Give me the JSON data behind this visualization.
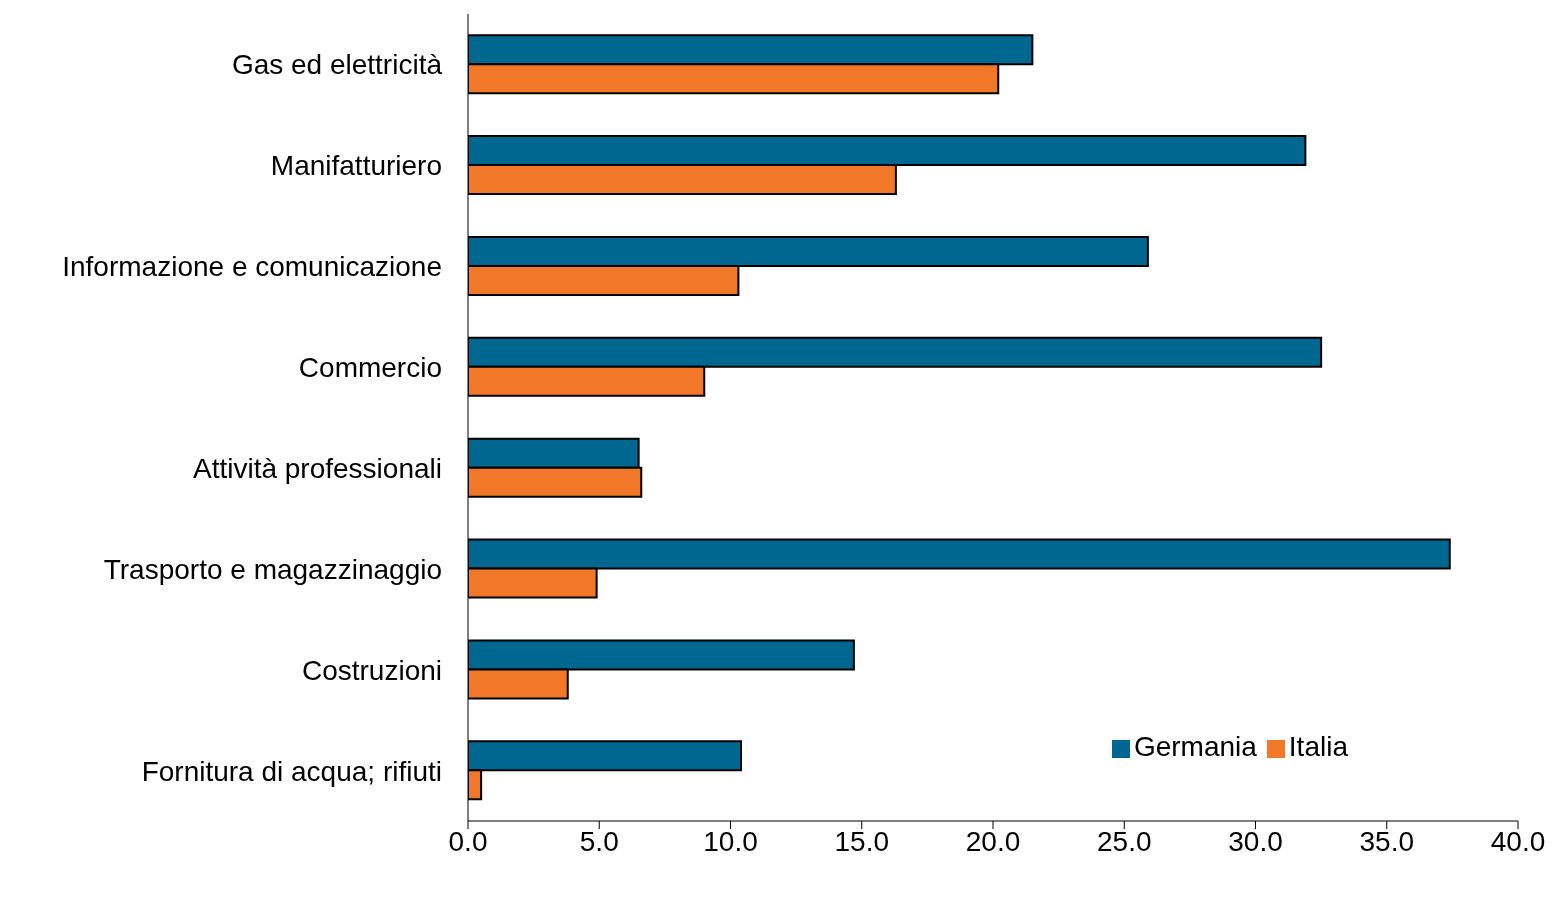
{
  "chart_data": {
    "type": "bar",
    "orientation": "horizontal",
    "categories": [
      "Gas ed elettricità",
      "Manifatturiero",
      "Informazione e comunicazione",
      "Commercio",
      "Attività professionali",
      "Trasporto e magazzinaggio",
      "Costruzioni",
      "Fornitura di acqua; rifiuti"
    ],
    "series": [
      {
        "name": "Germania",
        "color": "#006890",
        "values": [
          21.5,
          31.9,
          25.9,
          32.5,
          6.5,
          37.4,
          14.7,
          10.4
        ]
      },
      {
        "name": "Italia",
        "color": "#f07828",
        "values": [
          20.2,
          16.3,
          10.3,
          9.0,
          6.6,
          4.9,
          3.8,
          0.5
        ]
      }
    ],
    "xlim": [
      0,
      40
    ],
    "xticks": [
      {
        "value": 0,
        "label": "0.0"
      },
      {
        "value": 5,
        "label": "5.0"
      },
      {
        "value": 10,
        "label": "10.0"
      },
      {
        "value": 15,
        "label": "15.0"
      },
      {
        "value": 20,
        "label": "20.0"
      },
      {
        "value": 25,
        "label": "25.0"
      },
      {
        "value": 30,
        "label": "30.0"
      },
      {
        "value": 35,
        "label": "35.0"
      },
      {
        "value": 40,
        "label": "40.0"
      }
    ],
    "grid": false,
    "legend": "bottom right"
  }
}
